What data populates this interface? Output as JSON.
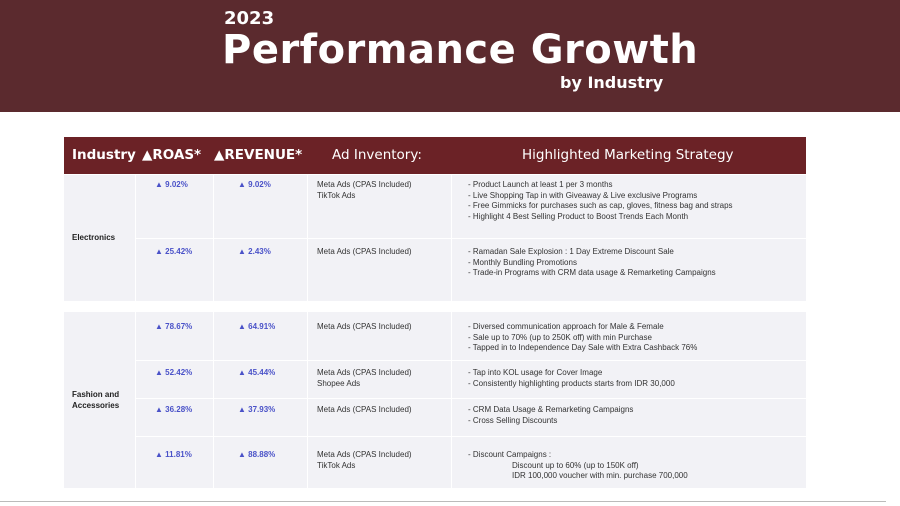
{
  "banner": {
    "year": "2023",
    "title": "Performance Growth",
    "subtitle": "by Industry"
  },
  "table": {
    "headers": {
      "industry": "Industry",
      "roas": "▲ROAS*",
      "revenue": "▲REVENUE*",
      "ad_inventory": "Ad Inventory:",
      "strategy": "Highlighted Marketing Strategy"
    },
    "sections": [
      {
        "industry": "Electronics",
        "rows": [
          {
            "roas": "▲ 9.02%",
            "revenue": "▲ 9.02%",
            "ad_inventory": [
              "Meta Ads (CPAS Included)",
              "TikTok Ads"
            ],
            "strategy": [
              "- Product Launch at least 1 per 3 months",
              "- Live Shopping Tap in with Giveaway & Live exclusive Programs",
              "- Free Gimmicks for purchases such as cap, gloves, fitness bag and straps",
              "- Highlight 4 Best Selling Product to Boost Trends Each Month"
            ]
          },
          {
            "roas": "▲ 25.42%",
            "revenue": "▲ 2.43%",
            "ad_inventory": [
              "Meta Ads (CPAS Included)"
            ],
            "strategy": [
              "- Ramadan Sale Explosion : 1 Day Extreme Discount Sale",
              "- Monthly Bundling Promotions",
              "- Trade-in Programs with CRM data usage & Remarketing Campaigns"
            ]
          }
        ]
      },
      {
        "industry": "Fashion and\nAccessories",
        "industry_lines": [
          "Fashion and",
          "Accessories"
        ],
        "rows": [
          {
            "roas": "▲ 78.67%",
            "revenue": "▲ 64.91%",
            "ad_inventory": [
              "Meta Ads (CPAS Included)"
            ],
            "strategy": [
              "- Diversed communication approach for Male & Female",
              "- Sale up to 70% (up to 250K off) with min Purchase",
              "- Tapped in to Independence Day Sale with Extra Cashback 76%"
            ]
          },
          {
            "roas": "▲ 52.42%",
            "revenue": "▲ 45.44%",
            "ad_inventory": [
              "Meta Ads (CPAS Included)",
              "Shopee Ads"
            ],
            "strategy": [
              "- Tap into KOL usage for Cover Image",
              "- Consistently highlighting products starts from IDR 30,000"
            ]
          },
          {
            "roas": "▲ 36.28%",
            "revenue": "▲ 37.93%",
            "ad_inventory": [
              "Meta Ads (CPAS Included)"
            ],
            "strategy": [
              "- CRM Data Usage & Remarketing Campaigns",
              "- Cross Selling Discounts"
            ]
          },
          {
            "roas": "▲ 11.81%",
            "revenue": "▲ 88.88%",
            "ad_inventory": [
              "Meta Ads (CPAS Included)",
              "TikTok Ads"
            ],
            "strategy": [
              "- Discount Campaigns :",
              "Discount up to 60% (up to 150K off)",
              "IDR 100,000 voucher with min. purchase 700,000"
            ]
          }
        ]
      }
    ]
  },
  "colors": {
    "banner": "#5b2a2e",
    "header": "#6b2226",
    "row_bg": "#f2f2f6",
    "metric": "#4a52c8"
  }
}
